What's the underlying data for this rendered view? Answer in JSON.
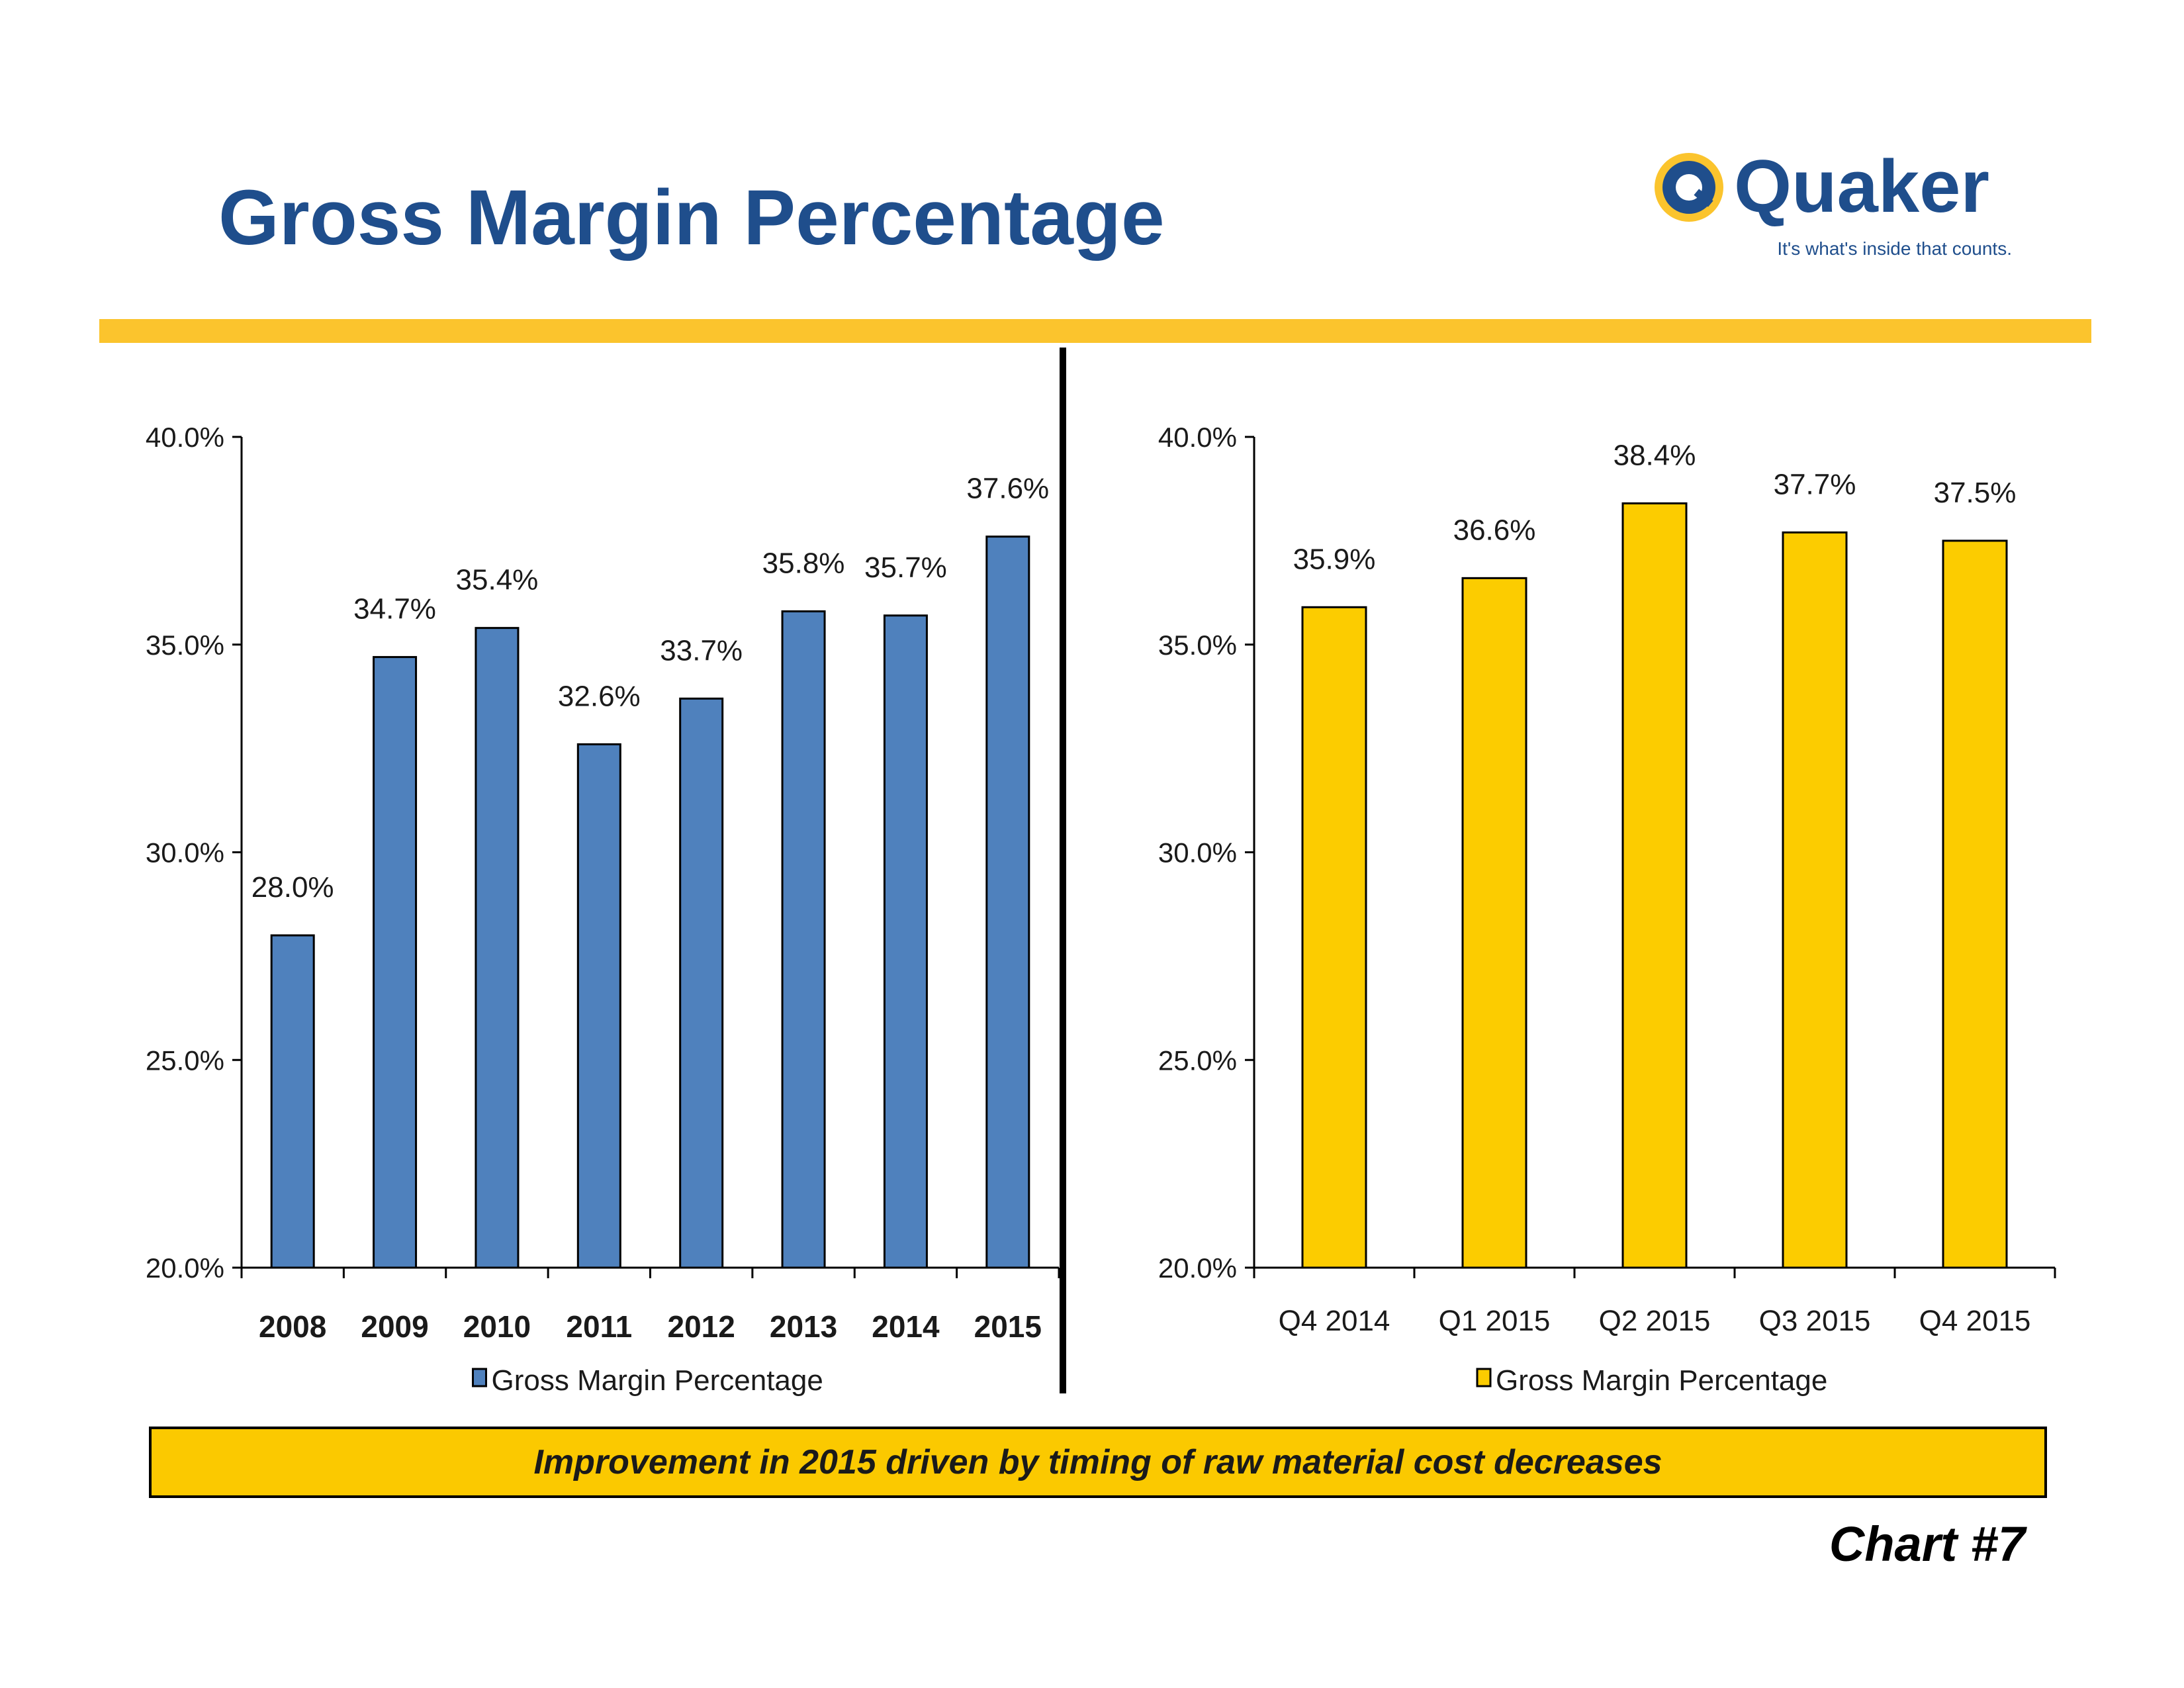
{
  "page": {
    "title": "Gross Margin Percentage",
    "callout": "Improvement in 2015 driven by timing of raw material cost decreases",
    "chart_number": "Chart #7"
  },
  "logo": {
    "icon": "quaker-q-logo-icon",
    "wordmark": "Quaker",
    "tagline": "It's what's inside that counts.",
    "colors": {
      "blue": "#1f4e8c",
      "gold": "#fbc42d"
    }
  },
  "colors": {
    "accent": "#fbc42d",
    "title": "#1f4e8c",
    "annual_bar": "#4f81bd",
    "quarterly_bar": "#fccc00"
  },
  "chart_data": [
    {
      "type": "bar",
      "categories": [
        "2008",
        "2009",
        "2010",
        "2011",
        "2012",
        "2013",
        "2014",
        "2015"
      ],
      "series": [
        {
          "name": "Gross Margin Percentage",
          "values": [
            28.0,
            34.7,
            35.4,
            32.6,
            33.7,
            35.8,
            35.7,
            37.6
          ]
        }
      ],
      "data_labels": [
        "28.0%",
        "34.7%",
        "35.4%",
        "32.6%",
        "33.7%",
        "35.8%",
        "35.7%",
        "37.6%"
      ],
      "ylim": [
        20,
        40
      ],
      "yticks": [
        "20.0%",
        "25.0%",
        "30.0%",
        "35.0%",
        "40.0%"
      ],
      "legend": "bottom",
      "grid": false,
      "color": "#4f81bd"
    },
    {
      "type": "bar",
      "categories": [
        "Q4 2014",
        "Q1 2015",
        "Q2 2015",
        "Q3 2015",
        "Q4 2015"
      ],
      "series": [
        {
          "name": "Gross Margin Percentage",
          "values": [
            35.9,
            36.6,
            38.4,
            37.7,
            37.5
          ]
        }
      ],
      "data_labels": [
        "35.9%",
        "36.6%",
        "38.4%",
        "37.7%",
        "37.5%"
      ],
      "ylim": [
        20,
        40
      ],
      "yticks": [
        "20.0%",
        "25.0%",
        "30.0%",
        "35.0%",
        "40.0%"
      ],
      "legend": "bottom",
      "grid": false,
      "color": "#fccc00"
    }
  ]
}
